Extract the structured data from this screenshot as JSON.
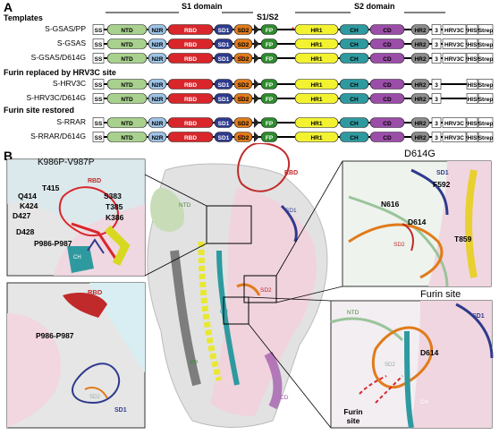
{
  "panel_a": {
    "letter": "A",
    "header": {
      "s1": "S1 domain",
      "s1s2": "S1/S2",
      "s2": "S2 domain"
    },
    "groups": [
      {
        "title": "Templates",
        "constructs": [
          "S-GSAS/PP",
          "S-GSAS",
          "S-GSAS/D614G"
        ]
      },
      {
        "title": "Furin replaced by HRV3C site",
        "constructs": [
          "S-HRV3C",
          "S-HRV3C/D614G"
        ]
      },
      {
        "title": "Furin site restored",
        "constructs": [
          "S-RRAR",
          "S-RRAR/D614G"
        ]
      }
    ],
    "domains": {
      "ss": "SS",
      "ntd": "NTD",
      "n2r": "N2R",
      "rbd": "RBD",
      "sd1": "SD1",
      "sd2": "SD2",
      "fp": "FP",
      "hr1": "HR1",
      "ch": "CH",
      "cd": "CD",
      "hr2": "HR2",
      "three": "3",
      "hrv3c": "HRV3C",
      "his": "HIS",
      "strep": "Strep"
    },
    "colors": {
      "ntd": "#a9d18e",
      "n2r": "#9dc3e6",
      "rbd": "#d9262b",
      "sd1": "#2e3a8c",
      "sd2": "#e07b1a",
      "fp": "#2e8b2e",
      "hr1": "#f2f230",
      "ch": "#2e9aa0",
      "cd": "#9b4ea8",
      "hr2": "#8c8c8c"
    }
  },
  "panel_b": {
    "letter": "B",
    "insets": {
      "k986": {
        "title": "K986P-V987P",
        "labels": [
          "T415",
          "Q414",
          "K424",
          "D427",
          "D428",
          "S383",
          "T385",
          "K386",
          "P986-P987",
          "RBD",
          "CH"
        ]
      },
      "lower_left": {
        "labels": [
          "RBD",
          "P986-P987",
          "SD1",
          "SD2"
        ]
      },
      "d614g": {
        "title": "D614G",
        "labels": [
          "SD1",
          "F592",
          "N616",
          "D614",
          "T859",
          "SD2"
        ]
      },
      "furin": {
        "title": "Furin site",
        "labels": [
          "NTD",
          "SD1",
          "D614",
          "SD2",
          "CH",
          "Furin site"
        ]
      }
    },
    "center_labels": [
      "RBD",
      "NTD",
      "SD1",
      "SD2",
      "FP",
      "CD",
      "CH"
    ]
  }
}
